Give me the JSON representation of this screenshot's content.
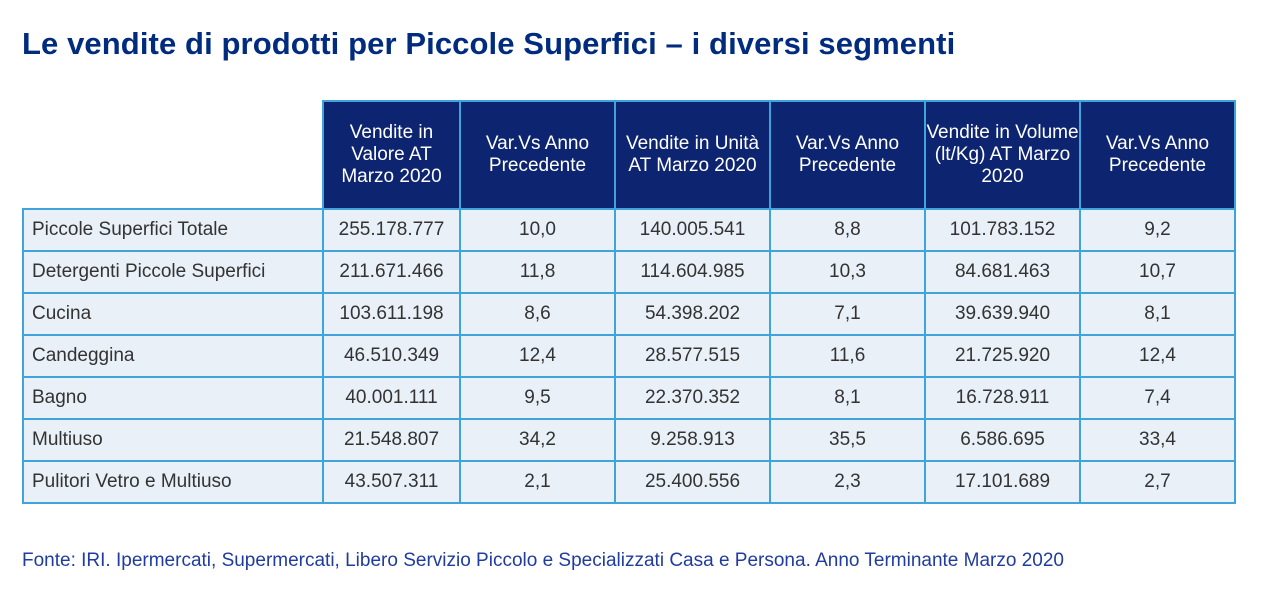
{
  "title": "Le vendite di prodotti per Piccole Superfici – i diversi segmenti",
  "table": {
    "headers": [
      "Vendite in Valore AT Marzo 2020",
      "Var.Vs Anno Precedente",
      "Vendite in Unità AT Marzo 2020",
      "Var.Vs Anno Precedente",
      "Vendite in Volume (lt/Kg) AT Marzo 2020",
      "Var.Vs Anno Precedente"
    ],
    "rows": [
      {
        "label": "Piccole Superfici Totale",
        "cells": [
          "255.178.777",
          "10,0",
          "140.005.541",
          "8,8",
          "101.783.152",
          "9,2"
        ]
      },
      {
        "label": "Detergenti Piccole Superfici",
        "cells": [
          "211.671.466",
          "11,8",
          "114.604.985",
          "10,3",
          "84.681.463",
          "10,7"
        ]
      },
      {
        "label": "Cucina",
        "cells": [
          "103.611.198",
          "8,6",
          "54.398.202",
          "7,1",
          "39.639.940",
          "8,1"
        ]
      },
      {
        "label": "Candeggina",
        "cells": [
          "46.510.349",
          "12,4",
          "28.577.515",
          "11,6",
          "21.725.920",
          "12,4"
        ]
      },
      {
        "label": "Bagno",
        "cells": [
          "40.001.111",
          "9,5",
          "22.370.352",
          "8,1",
          "16.728.911",
          "7,4"
        ]
      },
      {
        "label": "Multiuso",
        "cells": [
          "21.548.807",
          "34,2",
          "9.258.913",
          "35,5",
          "6.586.695",
          "33,4"
        ]
      },
      {
        "label": "Pulitori Vetro e Multiuso",
        "cells": [
          "43.507.311",
          "2,1",
          "25.400.556",
          "2,3",
          "17.101.689",
          "2,7"
        ]
      }
    ]
  },
  "source": "Fonte: IRI. Ipermercati, Supermercati, Libero Servizio Piccolo e Specializzati Casa e Persona. Anno Terminante Marzo 2020",
  "colors": {
    "title": "#002B7F",
    "header_bg": "#0D2471",
    "cell_bg": "#E9F0F8",
    "border": "#3FA3DC",
    "source_text": "#1F3C9E"
  }
}
